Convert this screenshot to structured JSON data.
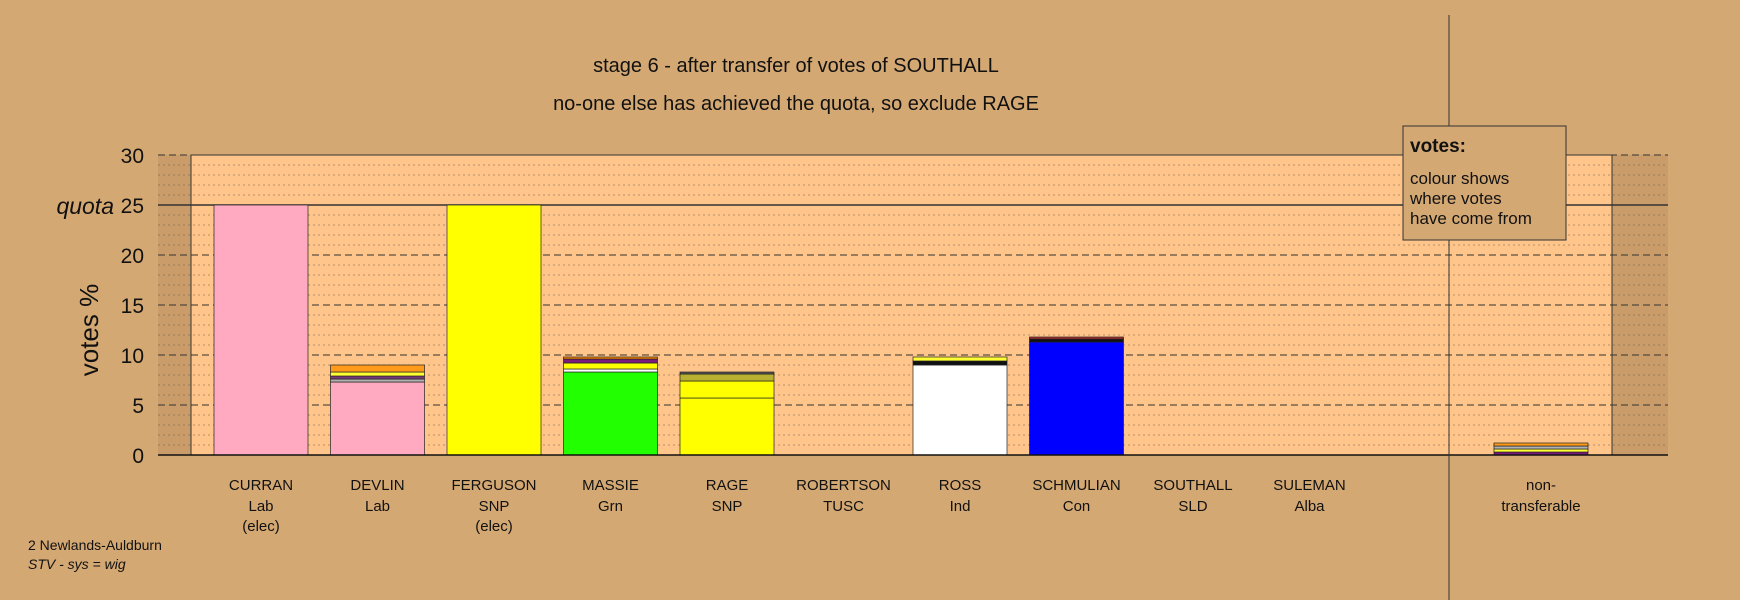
{
  "chart_data": {
    "type": "bar",
    "title": "stage 6 - after transfer of votes of SOUTHALL",
    "subtitle": "no-one else has achieved the quota, so exclude RAGE",
    "ylabel": "votes %",
    "quota_label": "quota",
    "quota": 25,
    "ylim": [
      0,
      30
    ],
    "yticks": [
      "0",
      "5",
      "10",
      "15",
      "20",
      "25",
      "30"
    ],
    "legend": {
      "heading": "votes:",
      "lines": [
        "colour shows",
        "where votes",
        "have come from"
      ],
      "placement": "top-right"
    },
    "categories": [
      {
        "name": "CURRAN",
        "party": "Lab",
        "note": "(elec)",
        "segments": [
          {
            "value": 25,
            "color": "#ffaac0"
          }
        ]
      },
      {
        "name": "DEVLIN",
        "party": "Lab",
        "note": "",
        "segments": [
          {
            "value": 7.3,
            "color": "#ffaac0"
          },
          {
            "value": 0.3,
            "color": "#b0b0b0"
          },
          {
            "value": 0.3,
            "color": "#7a3a7a"
          },
          {
            "value": 0.4,
            "color": "#ffff33"
          },
          {
            "value": 0.7,
            "color": "#ff9a1a"
          }
        ]
      },
      {
        "name": "FERGUSON",
        "party": "SNP",
        "note": "(elec)",
        "segments": [
          {
            "value": 25,
            "color": "#ffff00"
          }
        ]
      },
      {
        "name": "MASSIE",
        "party": "Grn",
        "note": "",
        "segments": [
          {
            "value": 8.3,
            "color": "#22ff00"
          },
          {
            "value": 0.3,
            "color": "#ffffff"
          },
          {
            "value": 0.6,
            "color": "#ffff00"
          },
          {
            "value": 0.4,
            "color": "#7a1a7a"
          },
          {
            "value": 0.2,
            "color": "#ff8a00"
          }
        ]
      },
      {
        "name": "RAGE",
        "party": "SNP",
        "note": "",
        "segments": [
          {
            "value": 5.7,
            "color": "#ffff00"
          },
          {
            "value": 1.7,
            "color": "#ffff00"
          },
          {
            "value": 0.7,
            "color": "#b8b030"
          },
          {
            "value": 0.2,
            "color": "#555555"
          }
        ]
      },
      {
        "name": "ROBERTSON",
        "party": "TUSC",
        "note": "",
        "segments": []
      },
      {
        "name": "ROSS",
        "party": "Ind",
        "note": "",
        "segments": [
          {
            "value": 9.0,
            "color": "#ffffff"
          },
          {
            "value": 0.4,
            "color": "#111111"
          },
          {
            "value": 0.4,
            "color": "#ffff33"
          }
        ]
      },
      {
        "name": "SCHMULIAN",
        "party": "Con",
        "note": "",
        "segments": [
          {
            "value": 11.3,
            "color": "#0000ff"
          },
          {
            "value": 0.3,
            "color": "#111111"
          },
          {
            "value": 0.2,
            "color": "#b03030"
          }
        ]
      },
      {
        "name": "SOUTHALL",
        "party": "SLD",
        "note": "",
        "segments": []
      },
      {
        "name": "SULEMAN",
        "party": "Alba",
        "note": "",
        "segments": []
      },
      {
        "name": "non-",
        "party": "transferable",
        "note": "",
        "segments": [
          {
            "value": 0.3,
            "color": "#7a1a7a"
          },
          {
            "value": 0.3,
            "color": "#ffff33"
          },
          {
            "value": 0.3,
            "color": "#b0b0b0"
          },
          {
            "value": 0.3,
            "color": "#ff9a1a"
          }
        ]
      }
    ]
  },
  "footer": {
    "ward": "2 Newlands-Auldburn",
    "system": "STV - sys = wig"
  }
}
